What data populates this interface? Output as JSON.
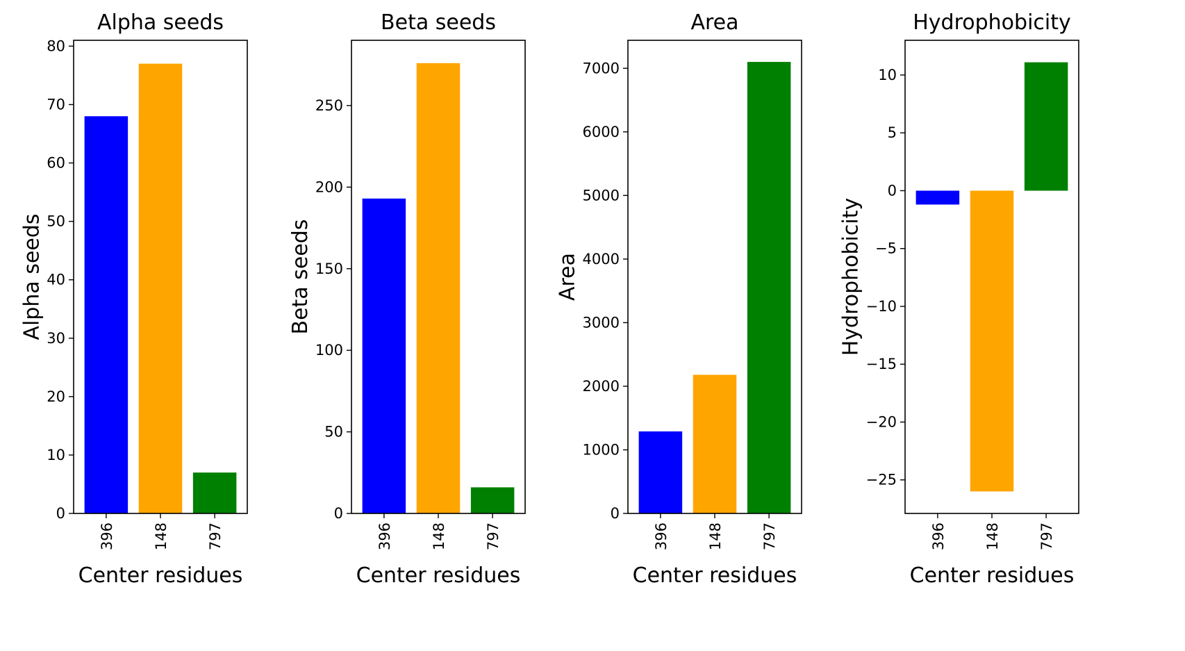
{
  "chart_data": [
    {
      "type": "bar",
      "title": "Alpha seeds",
      "xlabel": "Center residues",
      "ylabel": "Alpha seeds",
      "categories": [
        "396",
        "148",
        "797"
      ],
      "values": [
        68,
        77,
        7
      ],
      "colors": [
        "#0000ff",
        "#ffa500",
        "#008000"
      ],
      "ylim": [
        0,
        81
      ],
      "yticks": [
        0,
        10,
        20,
        30,
        40,
        50,
        60,
        70,
        80
      ],
      "ytick_labels": [
        "0",
        "10",
        "20",
        "30",
        "40",
        "50",
        "60",
        "70",
        "80"
      ],
      "grid": false
    },
    {
      "type": "bar",
      "title": "Beta seeds",
      "xlabel": "Center residues",
      "ylabel": "Beta seeds",
      "categories": [
        "396",
        "148",
        "797"
      ],
      "values": [
        193,
        276,
        16
      ],
      "colors": [
        "#0000ff",
        "#ffa500",
        "#008000"
      ],
      "ylim": [
        0,
        290
      ],
      "yticks": [
        0,
        50,
        100,
        150,
        200,
        250
      ],
      "ytick_labels": [
        "0",
        "50",
        "100",
        "150",
        "200",
        "250"
      ],
      "grid": false
    },
    {
      "type": "bar",
      "title": "Area",
      "xlabel": "Center residues",
      "ylabel": "Area",
      "categories": [
        "396",
        "148",
        "797"
      ],
      "values": [
        1290,
        2180,
        7100
      ],
      "colors": [
        "#0000ff",
        "#ffa500",
        "#008000"
      ],
      "ylim": [
        0,
        7440
      ],
      "yticks": [
        0,
        1000,
        2000,
        3000,
        4000,
        5000,
        6000,
        7000
      ],
      "ytick_labels": [
        "0",
        "1000",
        "2000",
        "3000",
        "4000",
        "5000",
        "6000",
        "7000"
      ],
      "grid": false
    },
    {
      "type": "bar",
      "title": "Hydrophobicity",
      "xlabel": "Center residues",
      "ylabel": "Hydrophobicity",
      "categories": [
        "396",
        "148",
        "797"
      ],
      "values": [
        -1.2,
        -26.0,
        11.1
      ],
      "colors": [
        "#0000ff",
        "#ffa500",
        "#008000"
      ],
      "ylim": [
        -27.9,
        13.0
      ],
      "yticks": [
        -25,
        -20,
        -15,
        -10,
        -5,
        0,
        5,
        10
      ],
      "ytick_labels": [
        "−25",
        "−20",
        "−15",
        "−10",
        "−5",
        "0",
        "5",
        "10"
      ],
      "grid": false
    }
  ]
}
